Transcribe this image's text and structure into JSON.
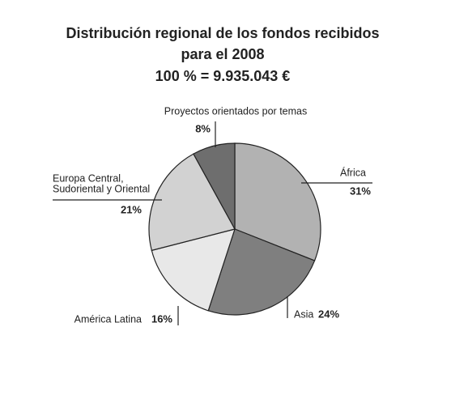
{
  "chart_data": {
    "type": "pie",
    "title": [
      "Distribución regional de los fondos recibidos",
      "para el 2008"
    ],
    "subtitle": "100 % = 9.935.043 €",
    "categories": [
      "África",
      "Asia",
      "América Latina",
      [
        "Europa Central,",
        "Sudoriental y Oriental"
      ],
      "Proyectos orientados por temas"
    ],
    "values": [
      31,
      24,
      16,
      21,
      8
    ],
    "value_labels": [
      "31%",
      "24%",
      "16%",
      "21%",
      "8%"
    ],
    "colors": [
      "#b2b2b2",
      "#7f7f7f",
      "#e8e8e8",
      "#d2d2d2",
      "#6e6e6e"
    ]
  }
}
